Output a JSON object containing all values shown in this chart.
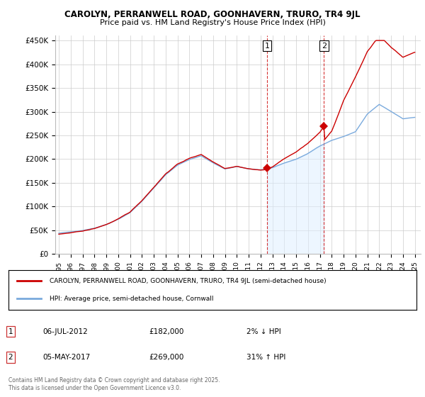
{
  "title": "CAROLYN, PERRANWELL ROAD, GOONHAVERN, TRURO, TR4 9JL",
  "subtitle": "Price paid vs. HM Land Registry's House Price Index (HPI)",
  "ylabel_ticks": [
    "£0",
    "£50K",
    "£100K",
    "£150K",
    "£200K",
    "£250K",
    "£300K",
    "£350K",
    "£400K",
    "£450K"
  ],
  "ytick_values": [
    0,
    50000,
    100000,
    150000,
    200000,
    250000,
    300000,
    350000,
    400000,
    450000
  ],
  "ylim": [
    0,
    460000
  ],
  "sale1": {
    "date": 2012.54,
    "price": 182000,
    "label": "1",
    "text": "06-JUL-2012",
    "price_text": "£182,000",
    "hpi_text": "2% ↓ HPI"
  },
  "sale2": {
    "date": 2017.35,
    "price": 269000,
    "label": "2",
    "text": "05-MAY-2017",
    "price_text": "£269,000",
    "hpi_text": "31% ↑ HPI"
  },
  "house_color": "#cc0000",
  "hpi_color": "#7aaadd",
  "hpi_fill_color": "#ddeeff",
  "legend_house": "CAROLYN, PERRANWELL ROAD, GOONHAVERN, TRURO, TR4 9JL (semi-detached house)",
  "legend_hpi": "HPI: Average price, semi-detached house, Cornwall",
  "footnote": "Contains HM Land Registry data © Crown copyright and database right 2025.\nThis data is licensed under the Open Government Licence v3.0.",
  "background_color": "#ffffff",
  "grid_color": "#cccccc"
}
